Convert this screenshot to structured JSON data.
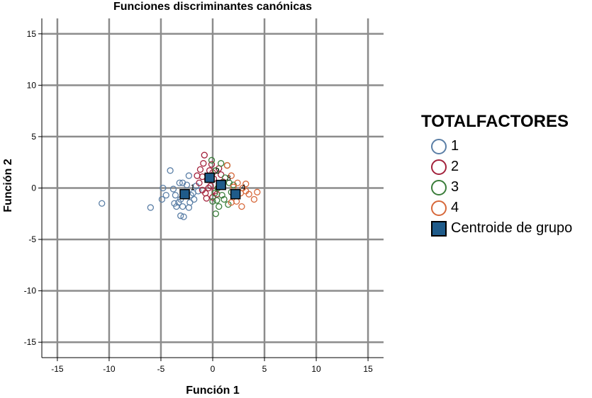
{
  "chart_data": {
    "type": "scatter",
    "title": "Funciones discriminantes canónicas",
    "xlabel": "Función 1",
    "ylabel": "Función 2",
    "xlim": [
      -16.5,
      16.5
    ],
    "ylim": [
      -16.5,
      16.5
    ],
    "xticks": [
      -15,
      -10,
      -5,
      0,
      5,
      10,
      15
    ],
    "yticks": [
      -15,
      -10,
      -5,
      0,
      5,
      10,
      15
    ],
    "grid": true,
    "legend": {
      "title": "TOTALFACTORES",
      "placement": "right",
      "entries": [
        "1",
        "2",
        "3",
        "4",
        "Centroide de grupo"
      ]
    },
    "series": [
      {
        "name": "1",
        "color": "#5b7fa6",
        "points": [
          [
            -10.7,
            -1.5
          ],
          [
            -6,
            -1.9
          ],
          [
            -4.1,
            1.7
          ],
          [
            -4.8,
            0
          ],
          [
            -4.5,
            -0.7
          ],
          [
            -4.9,
            -1.1
          ],
          [
            -3.8,
            -0.1
          ],
          [
            -3.6,
            -0.7
          ],
          [
            -3.7,
            -1.5
          ],
          [
            -3.5,
            -1.8
          ],
          [
            -3.3,
            -1.4
          ],
          [
            -3.1,
            -1.1
          ],
          [
            -3.2,
            0.5
          ],
          [
            -2.9,
            0.5
          ],
          [
            -2.7,
            -0.4
          ],
          [
            -3.1,
            -2.7
          ],
          [
            -2.8,
            -2.8
          ],
          [
            -2.9,
            -1.8
          ],
          [
            -2.3,
            -1.9
          ],
          [
            -2.2,
            -1.4
          ],
          [
            -2.1,
            -0.7
          ],
          [
            -2.3,
            1.2
          ],
          [
            -2.5,
            0.3
          ],
          [
            -1.9,
            -0.5
          ],
          [
            -1.8,
            -1.1
          ],
          [
            -1.6,
            0.2
          ],
          [
            -1.4,
            -0.3
          ]
        ]
      },
      {
        "name": "2",
        "color": "#a3223c",
        "points": [
          [
            -0.8,
            3.2
          ],
          [
            -1.2,
            1.8
          ],
          [
            -1.0,
            1.1
          ],
          [
            -1.3,
            0.5
          ],
          [
            -1.0,
            -0.2
          ],
          [
            -0.7,
            -0.5
          ],
          [
            -0.5,
            0.8
          ],
          [
            -0.3,
            1.7
          ],
          [
            -0.1,
            2.3
          ],
          [
            0,
            1.5
          ],
          [
            0.1,
            0.9
          ],
          [
            -0.2,
            0.2
          ],
          [
            0.2,
            -0.3
          ],
          [
            0.4,
            -0.6
          ],
          [
            0.6,
            1.9
          ],
          [
            0.8,
            1.3
          ],
          [
            1.0,
            0.6
          ],
          [
            -0.6,
            -1.0
          ],
          [
            -0.4,
            0.0
          ],
          [
            0.0,
            -0.9
          ],
          [
            -1.5,
            1.2
          ],
          [
            -0.9,
            2.4
          ]
        ]
      },
      {
        "name": "3",
        "color": "#3a7d3a",
        "points": [
          [
            -0.1,
            2.7
          ],
          [
            0.3,
            1.7
          ],
          [
            0.8,
            2.4
          ],
          [
            1.4,
            2.2
          ],
          [
            1.2,
            1.0
          ],
          [
            1.6,
            0.5
          ],
          [
            0.5,
            0.0
          ],
          [
            0.2,
            -0.5
          ],
          [
            0.4,
            -1.2
          ],
          [
            0,
            -1.3
          ],
          [
            0.6,
            -1.8
          ],
          [
            0.3,
            -2.5
          ],
          [
            1.1,
            -1.1
          ],
          [
            1.8,
            -0.4
          ],
          [
            2.0,
            0.3
          ],
          [
            1.5,
            -1.6
          ],
          [
            0.9,
            -0.7
          ]
        ]
      },
      {
        "name": "4",
        "color": "#d7683a",
        "points": [
          [
            1.4,
            2.2
          ],
          [
            1.8,
            1.2
          ],
          [
            2.0,
            0.1
          ],
          [
            2.4,
            0.5
          ],
          [
            2.7,
            -0.5
          ],
          [
            2.3,
            -1.3
          ],
          [
            2.8,
            -1.8
          ],
          [
            3.2,
            -0.3
          ],
          [
            3.5,
            -0.6
          ],
          [
            4.0,
            -1.1
          ],
          [
            4.3,
            -0.4
          ],
          [
            3.2,
            0.4
          ],
          [
            1.8,
            -1.4
          ],
          [
            2.9,
            0.0
          ]
        ]
      }
    ],
    "centroids": [
      {
        "group": "1",
        "x": -2.7,
        "y": -0.6
      },
      {
        "group": "2",
        "x": -0.3,
        "y": 1.0
      },
      {
        "group": "3",
        "x": 0.8,
        "y": 0.3
      },
      {
        "group": "4",
        "x": 2.2,
        "y": -0.6
      }
    ],
    "centroid_color": "#1f5b8a"
  }
}
